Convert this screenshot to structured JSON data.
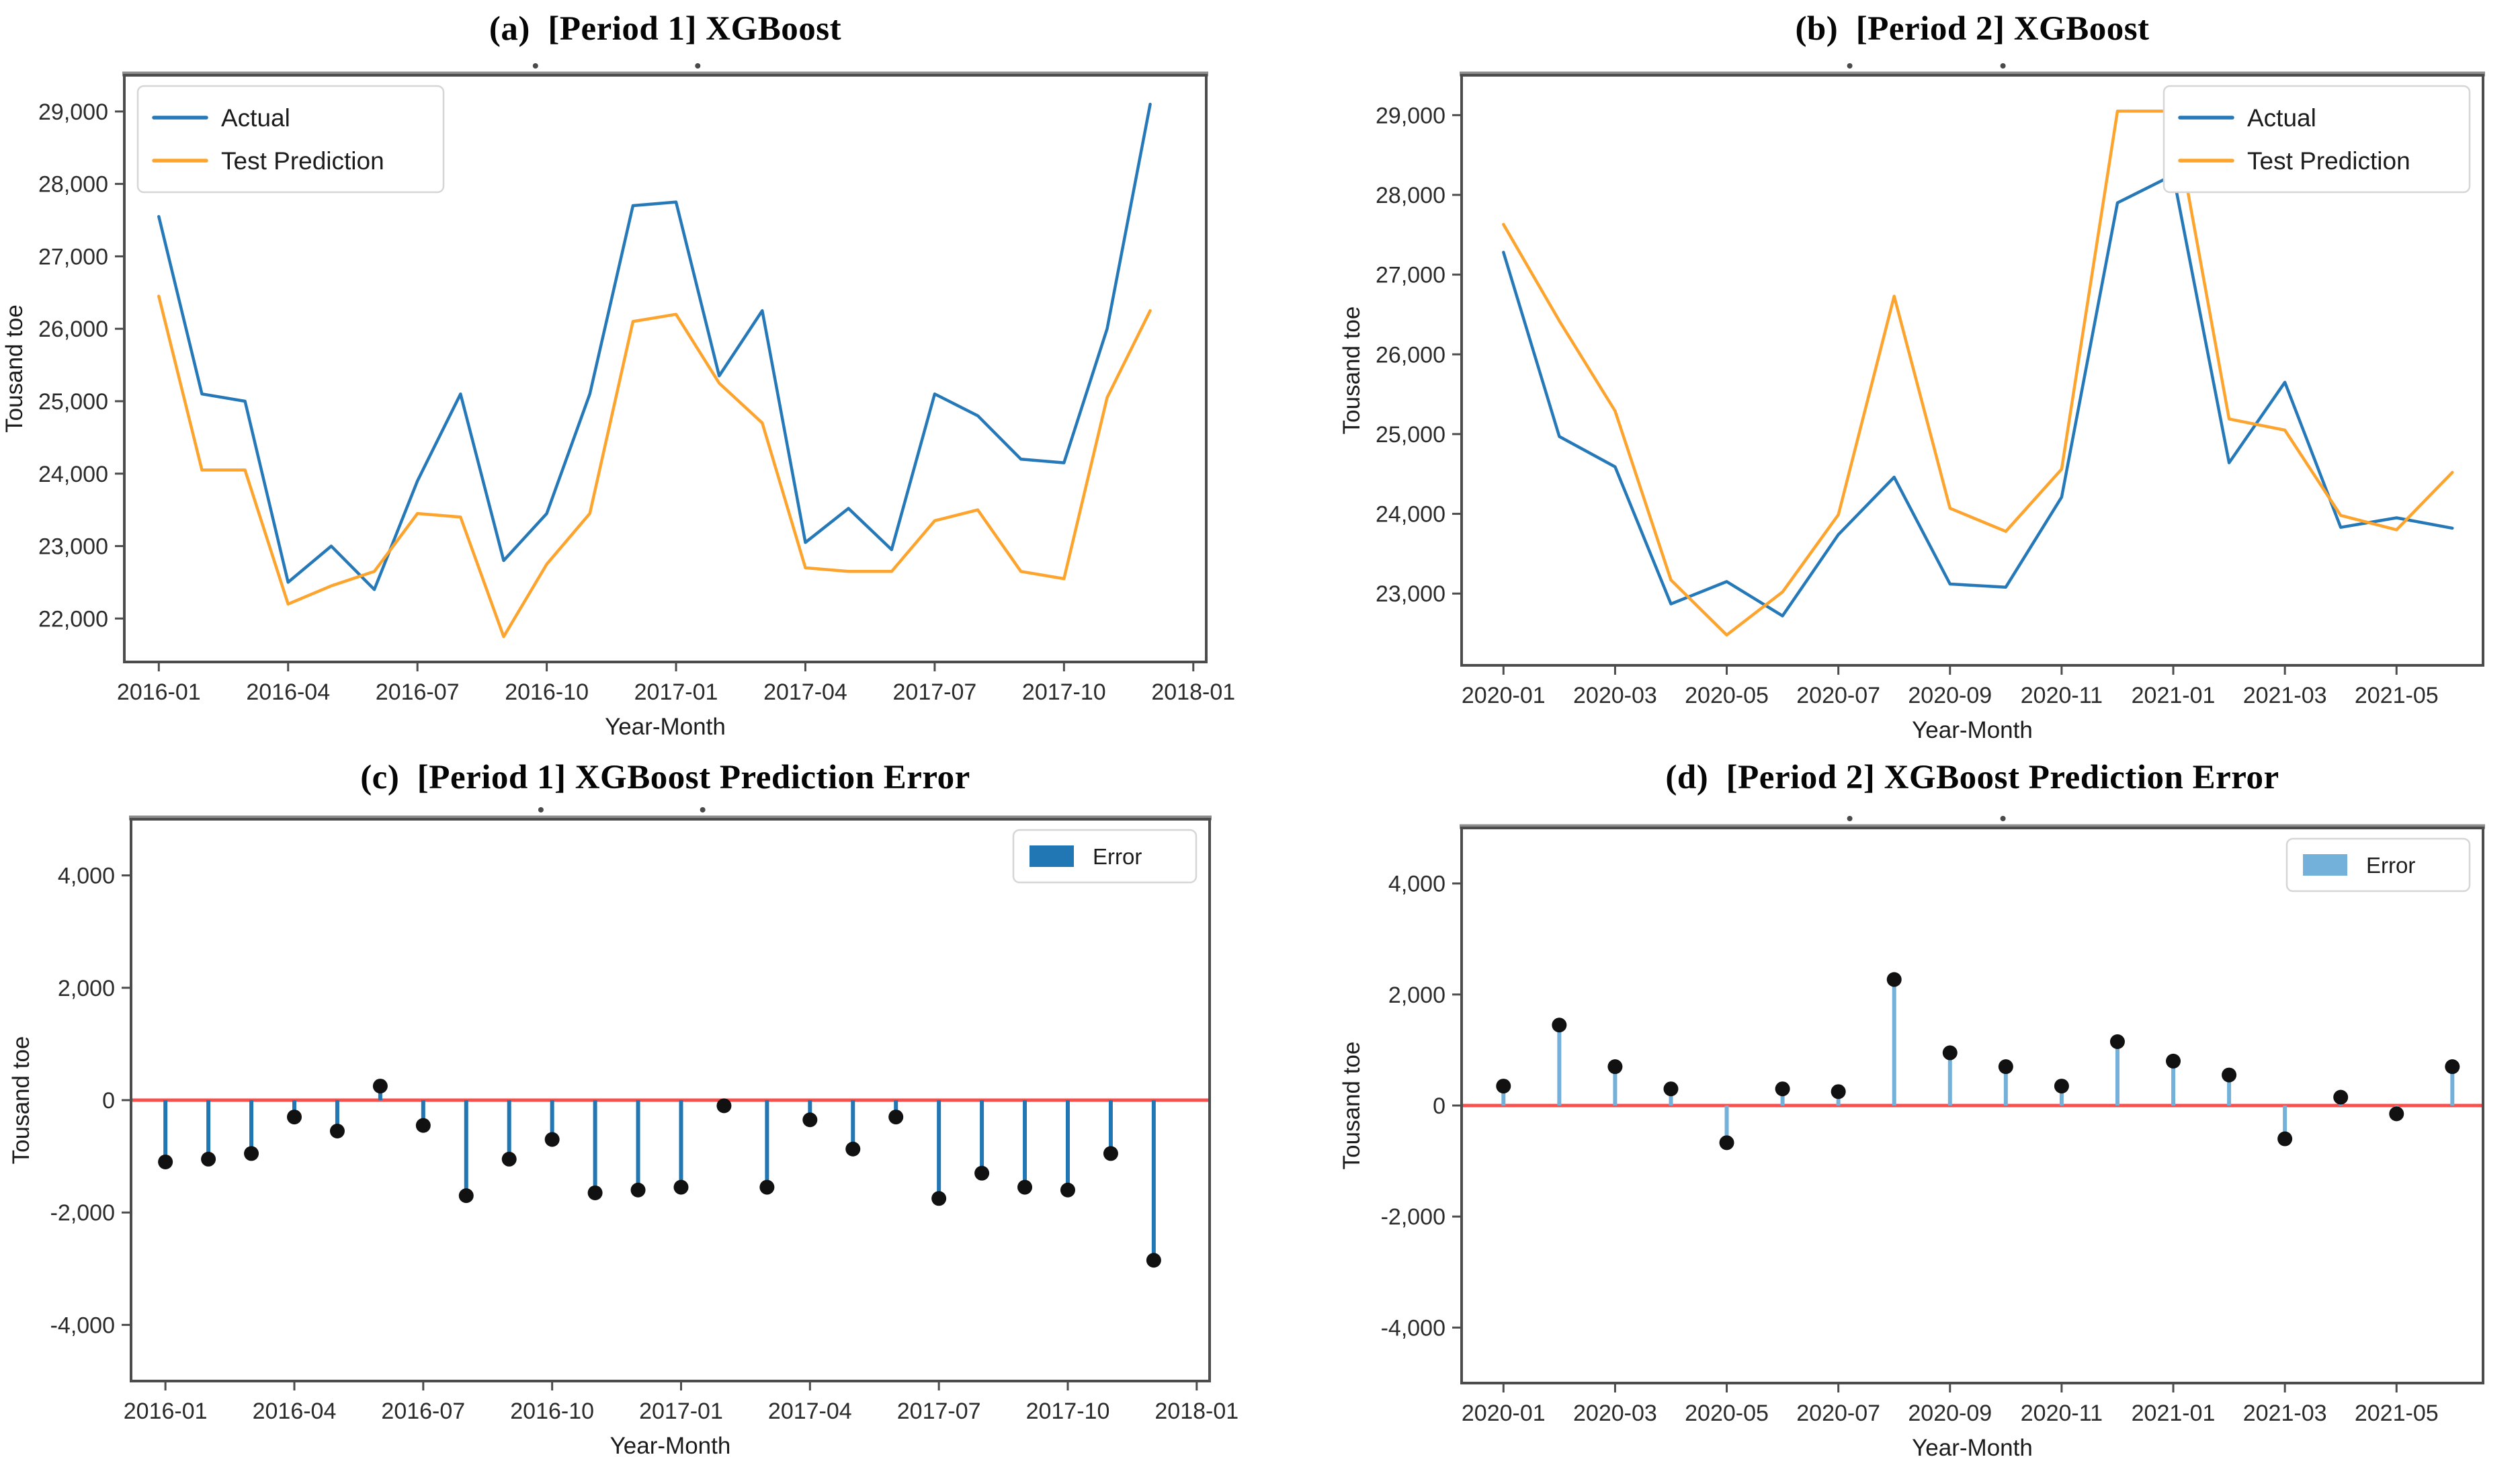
{
  "page": {
    "background": "#ffffff"
  },
  "colors": {
    "actual_line": "#2679b8",
    "prediction_line": "#fca42d",
    "error_stem_period1": "#2176b4",
    "error_stem_period2": "#74b1da",
    "error_dot": "#111111",
    "zero_line": "#f94f4d",
    "spine": "#4c4c4c",
    "spine_top": "#8d8d8d"
  },
  "chart_data": [
    {
      "id": "a",
      "type": "line",
      "title": "(a)  [Period 1] XGBoost",
      "xlabel": "Year-Month",
      "ylabel": "Tousand toe",
      "x": [
        "2016-01",
        "2016-02",
        "2016-03",
        "2016-04",
        "2016-05",
        "2016-06",
        "2016-07",
        "2016-08",
        "2016-09",
        "2016-10",
        "2016-11",
        "2016-12",
        "2017-01",
        "2017-02",
        "2017-03",
        "2017-04",
        "2017-05",
        "2017-06",
        "2017-07",
        "2017-08",
        "2017-09",
        "2017-10",
        "2017-11",
        "2017-12"
      ],
      "xticks": [
        "2016-01",
        "2016-04",
        "2016-07",
        "2016-10",
        "2017-01",
        "2017-04",
        "2017-07",
        "2017-10",
        "2018-01"
      ],
      "xtick_positions": [
        0,
        3,
        6,
        9,
        12,
        15,
        18,
        21,
        24
      ],
      "xlim": [
        -0.8,
        24.3
      ],
      "ylim": [
        21400,
        29500
      ],
      "yticks": [
        22000,
        23000,
        24000,
        25000,
        26000,
        27000,
        28000,
        29000
      ],
      "grid": false,
      "legend": {
        "position": "upper-left",
        "labels": [
          "Actual",
          "Test Prediction"
        ]
      },
      "series": [
        {
          "name": "Actual",
          "color": "#2679b8",
          "values": [
            27550,
            25100,
            25000,
            22500,
            23000,
            22400,
            23900,
            25100,
            22800,
            23450,
            25100,
            27700,
            27750,
            25350,
            26250,
            23050,
            23520,
            22950,
            25100,
            24800,
            24200,
            24150,
            26000,
            29100
          ]
        },
        {
          "name": "Test Prediction",
          "color": "#fca42d",
          "values": [
            26450,
            24050,
            24050,
            22200,
            22450,
            22650,
            23450,
            23400,
            21750,
            22750,
            23450,
            26100,
            26200,
            25250,
            24700,
            22700,
            22650,
            22650,
            23350,
            23500,
            22650,
            22550,
            25050,
            26250
          ]
        }
      ]
    },
    {
      "id": "b",
      "type": "line",
      "title": "(b)  [Period 2] XGBoost",
      "xlabel": "Year-Month",
      "ylabel": "Tousand toe",
      "x": [
        "2020-01",
        "2020-02",
        "2020-03",
        "2020-04",
        "2020-05",
        "2020-06",
        "2020-07",
        "2020-08",
        "2020-09",
        "2020-10",
        "2020-11",
        "2020-12",
        "2021-01",
        "2021-02",
        "2021-03",
        "2021-04",
        "2021-05",
        "2021-06"
      ],
      "xticks": [
        "2020-01",
        "2020-03",
        "2020-05",
        "2020-07",
        "2020-09",
        "2020-11",
        "2021-01",
        "2021-03",
        "2021-05"
      ],
      "xtick_positions": [
        0,
        2,
        4,
        6,
        8,
        10,
        12,
        14,
        16
      ],
      "xlim": [
        -0.75,
        17.55
      ],
      "ylim": [
        22100,
        29500
      ],
      "yticks": [
        23000,
        24000,
        25000,
        26000,
        27000,
        28000,
        29000
      ],
      "grid": false,
      "legend": {
        "position": "upper-right",
        "labels": [
          "Actual",
          "Test Prediction"
        ]
      },
      "series": [
        {
          "name": "Actual",
          "color": "#2679b8",
          "values": [
            27280,
            24970,
            24590,
            22870,
            23150,
            22720,
            23740,
            24460,
            23120,
            23080,
            24210,
            27900,
            28250,
            24640,
            25650,
            23830,
            23950,
            23820
          ]
        },
        {
          "name": "Test Prediction",
          "color": "#fca42d",
          "values": [
            27630,
            26420,
            25290,
            23170,
            22480,
            23020,
            23990,
            26730,
            24070,
            23780,
            24560,
            29050,
            29050,
            25190,
            25050,
            23980,
            23800,
            24520
          ]
        }
      ]
    },
    {
      "id": "c",
      "type": "stem",
      "title": "(c)  [Period 1] XGBoost Prediction Error",
      "xlabel": "Year-Month",
      "ylabel": "Tousand toe",
      "x": [
        "2016-01",
        "2016-02",
        "2016-03",
        "2016-04",
        "2016-05",
        "2016-06",
        "2016-07",
        "2016-08",
        "2016-09",
        "2016-10",
        "2016-11",
        "2016-12",
        "2017-01",
        "2017-02",
        "2017-03",
        "2017-04",
        "2017-05",
        "2017-06",
        "2017-07",
        "2017-08",
        "2017-09",
        "2017-10",
        "2017-11",
        "2017-12"
      ],
      "xticks": [
        "2016-01",
        "2016-04",
        "2016-07",
        "2016-10",
        "2017-01",
        "2017-04",
        "2017-07",
        "2017-10",
        "2018-01"
      ],
      "xtick_positions": [
        0,
        3,
        6,
        9,
        12,
        15,
        18,
        21,
        24
      ],
      "xlim": [
        -0.8,
        24.3
      ],
      "ylim": [
        -5000,
        5000
      ],
      "yticks": [
        -4000,
        -2000,
        0,
        2000,
        4000
      ],
      "grid": false,
      "legend": {
        "position": "upper-right",
        "labels": [
          "Error"
        ]
      },
      "stem_color": "#2176b4",
      "dot_color": "#111111",
      "zero_line_color": "#f94f4d",
      "values": [
        -1100,
        -1050,
        -950,
        -300,
        -550,
        250,
        -450,
        -1700,
        -1050,
        -700,
        -1650,
        -1600,
        -1550,
        -100,
        -1550,
        -350,
        -870,
        -300,
        -1750,
        -1300,
        -1550,
        -1600,
        -950,
        -2850
      ]
    },
    {
      "id": "d",
      "type": "stem",
      "title": "(d)  [Period 2] XGBoost Prediction Error",
      "xlabel": "Year-Month",
      "ylabel": "Tousand toe",
      "x": [
        "2020-01",
        "2020-02",
        "2020-03",
        "2020-04",
        "2020-05",
        "2020-06",
        "2020-07",
        "2020-08",
        "2020-09",
        "2020-10",
        "2020-11",
        "2020-12",
        "2021-01",
        "2021-02",
        "2021-03",
        "2021-04",
        "2021-05",
        "2021-06"
      ],
      "xticks": [
        "2020-01",
        "2020-03",
        "2020-05",
        "2020-07",
        "2020-09",
        "2020-11",
        "2021-01",
        "2021-03",
        "2021-05"
      ],
      "xtick_positions": [
        0,
        2,
        4,
        6,
        8,
        10,
        12,
        14,
        16
      ],
      "xlim": [
        -0.75,
        17.55
      ],
      "ylim": [
        -5000,
        5000
      ],
      "yticks": [
        -4000,
        -2000,
        0,
        2000,
        4000
      ],
      "grid": false,
      "legend": {
        "position": "upper-right",
        "labels": [
          "Error"
        ]
      },
      "stem_color": "#74b1da",
      "dot_color": "#111111",
      "zero_line_color": "#f94f4d",
      "values": [
        350,
        1450,
        700,
        300,
        -670,
        300,
        250,
        2270,
        950,
        700,
        350,
        1150,
        800,
        550,
        -600,
        150,
        -150,
        700
      ]
    }
  ]
}
